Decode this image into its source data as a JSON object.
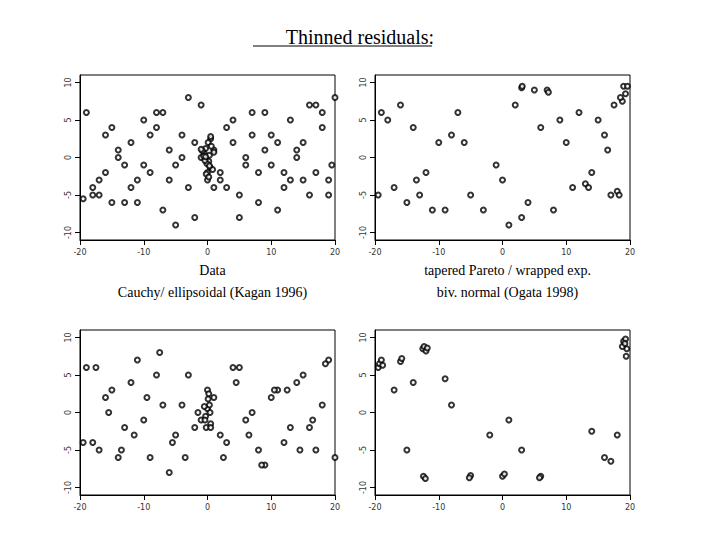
{
  "title": "Thinned residuals:",
  "chart_data": [
    {
      "type": "scatter",
      "title": "Data",
      "marker": "open circle",
      "color": "#000000",
      "grid": false,
      "xlim": [
        -20,
        20
      ],
      "xticks": [
        -20,
        -10,
        0,
        10,
        20
      ],
      "ylim": [
        -11,
        11
      ],
      "yticks": [
        -10,
        -5,
        0,
        5,
        10
      ],
      "x": [
        -19,
        -18,
        -17,
        -16,
        -15,
        -14,
        -13,
        -12,
        -11,
        -10,
        -9,
        -8,
        -7,
        -6,
        -5,
        -4,
        -3,
        -2,
        -1,
        0,
        1,
        2,
        3,
        4,
        5,
        6,
        7,
        8,
        9,
        10,
        11,
        12,
        13,
        14,
        15,
        16,
        17,
        18,
        19,
        20,
        -18,
        -16,
        -14,
        -12,
        -10,
        -8,
        -6,
        -4,
        -2,
        0.5,
        2,
        4,
        6,
        8,
        10,
        12,
        14,
        16,
        18,
        19.5,
        -0.5,
        0.2,
        -0.3,
        0.4,
        0.1,
        -0.2,
        0.3,
        -0.1,
        0.6,
        -0.6,
        0.8,
        -0.8,
        0.0,
        0.5,
        -0.4,
        0.2,
        1.0,
        -1.0,
        0.3,
        -0.3,
        -17,
        -13,
        -9,
        -5,
        -1,
        3,
        7,
        11,
        15,
        19,
        -19.5,
        -15,
        -11,
        -7,
        -3,
        1,
        5,
        9,
        13,
        17
      ],
      "values": [
        6,
        -4,
        -5,
        3,
        -6,
        0,
        -1,
        2,
        -3,
        5,
        -2,
        4,
        -7,
        1,
        -1,
        3,
        -4,
        2,
        0,
        -2,
        1,
        -3,
        4,
        2,
        -5,
        0,
        3,
        -2,
        6,
        -1,
        2,
        -4,
        5,
        0,
        -3,
        7,
        -2,
        4,
        -5,
        8,
        -5,
        -2,
        1,
        -4,
        -1,
        6,
        -3,
        0,
        -8,
        2.5,
        -2,
        5,
        -1,
        -6,
        3,
        -2,
        1,
        -5,
        6,
        -1,
        0.5,
        -0.5,
        1.2,
        -1.3,
        2,
        -2.2,
        0.3,
        -0.8,
        1.5,
        0.2,
        -1.6,
        0.9,
        -3,
        2.8,
        -0.4,
        -2.6,
        0.7,
        1.1,
        -1.1,
        0.1,
        -3,
        -6,
        3,
        -9,
        7,
        -4,
        6,
        -7,
        2,
        -3,
        -5.5,
        4,
        -6,
        6,
        8,
        -4,
        -8,
        1,
        -3,
        7
      ]
    },
    {
      "type": "scatter",
      "title": "tapered Pareto / wrapped exp.",
      "marker": "open circle",
      "color": "#000000",
      "grid": false,
      "xlim": [
        -20,
        20
      ],
      "xticks": [
        -20,
        -10,
        0,
        10,
        20
      ],
      "ylim": [
        -11,
        11
      ],
      "yticks": [
        -10,
        -5,
        0,
        5,
        10
      ],
      "x": [
        19,
        19.3,
        18.8,
        19.6,
        18.5,
        17.5,
        17,
        16,
        15,
        14,
        12,
        11,
        10,
        9,
        8,
        6,
        5,
        4,
        3,
        2,
        0,
        -1,
        -3,
        -5,
        -7,
        -8,
        -9,
        -10,
        -12,
        -14,
        -15,
        -16,
        -17,
        -18,
        -19,
        -19.5,
        -13,
        -11,
        -6,
        1,
        3,
        3.1,
        7,
        7.2,
        13,
        13.5,
        18,
        18.3,
        16.5,
        -13.5
      ],
      "values": [
        9.5,
        8.5,
        7.5,
        9.5,
        8,
        7,
        -5,
        3,
        5,
        -2,
        6,
        -4,
        2,
        5,
        -7,
        4,
        9,
        -6,
        -8,
        7,
        -3,
        -1,
        -7,
        -5,
        6,
        3,
        -7,
        2,
        -2,
        4,
        -6,
        7,
        -4,
        5,
        6,
        -5,
        -5,
        -7,
        2,
        -9,
        9.3,
        9.5,
        9,
        8.7,
        -3.5,
        -4,
        -4.5,
        -5,
        1,
        -3
      ]
    },
    {
      "type": "scatter",
      "title": "Cauchy/ ellipsoidal (Kagan 1996)",
      "marker": "open circle",
      "color": "#000000",
      "grid": false,
      "xlim": [
        -20,
        20
      ],
      "xticks": [
        -20,
        -10,
        0,
        10,
        20
      ],
      "ylim": [
        -11,
        11
      ],
      "yticks": [
        -10,
        -5,
        0,
        5,
        10
      ],
      "x": [
        -19,
        -17,
        -15,
        -13,
        -11,
        -9,
        -7,
        -5,
        -3,
        -1,
        1,
        3,
        5,
        7,
        9,
        11,
        13,
        15,
        17,
        19,
        -18,
        -16,
        -14,
        -12,
        -10,
        -8,
        -6,
        -4,
        -2,
        0,
        2,
        4,
        6,
        8,
        10,
        12,
        14,
        16,
        18,
        20,
        0,
        0.3,
        -0.3,
        0.5,
        -0.5,
        0.2,
        -0.2,
        0.1,
        -0.4,
        0.4,
        -19.5,
        -15.5,
        -11.5,
        -7.5,
        -3.5,
        0.5,
        4.5,
        8.5,
        12.5,
        16.5,
        -17.5,
        -13.5,
        -9.5,
        -5.5,
        -1.5,
        2.5,
        6.5,
        10.5,
        14.5,
        18.5
      ],
      "values": [
        6,
        -5,
        3,
        -2,
        7,
        -6,
        1,
        -3,
        5,
        -1,
        2,
        -4,
        6,
        0,
        -7,
        3,
        -2,
        5,
        -5,
        7,
        -4,
        2,
        -6,
        4,
        -1,
        5,
        -8,
        1,
        -2,
        3,
        -3,
        6,
        -1,
        -5,
        2,
        -4,
        4,
        -2,
        1,
        -6,
        0.5,
        1,
        -0.5,
        -1.5,
        0.8,
        2.5,
        -2,
        1.8,
        -1,
        0,
        -4,
        0,
        -3,
        8,
        -6,
        -2,
        4,
        -7,
        3,
        -1,
        6,
        -5,
        2,
        -4,
        0,
        -6,
        -3,
        3,
        -5,
        6.5
      ]
    },
    {
      "type": "scatter",
      "title": "biv. normal (Ogata 1998)",
      "marker": "open circle",
      "color": "#000000",
      "grid": false,
      "xlim": [
        -20,
        20
      ],
      "xticks": [
        -20,
        -10,
        0,
        10,
        20
      ],
      "ylim": [
        -11,
        11
      ],
      "yticks": [
        -10,
        -5,
        0,
        5,
        10
      ],
      "x": [
        -19.5,
        -19.3,
        -19,
        -18.8,
        -16,
        -15.8,
        -12.5,
        -12.3,
        -12,
        -11.8,
        -12.4,
        -12.1,
        -5,
        -5.2,
        0,
        0.3,
        6,
        5.8,
        19,
        19.3,
        19.5,
        18.8,
        19.2,
        19.4,
        -14,
        -15,
        -8,
        1,
        14,
        16,
        17,
        18,
        -17,
        -9,
        3,
        -2
      ],
      "values": [
        6,
        6.5,
        7,
        6.3,
        6.8,
        7.2,
        8.5,
        8.8,
        8.2,
        8.6,
        -8.5,
        -8.8,
        -8.4,
        -8.7,
        -8.5,
        -8.2,
        -8.5,
        -8.7,
        9.5,
        9.8,
        8.5,
        8.8,
        9.2,
        7.5,
        4,
        -5,
        1,
        -1,
        -2.5,
        -6,
        -6.5,
        -3,
        3,
        4.5,
        -5,
        -3
      ]
    }
  ]
}
